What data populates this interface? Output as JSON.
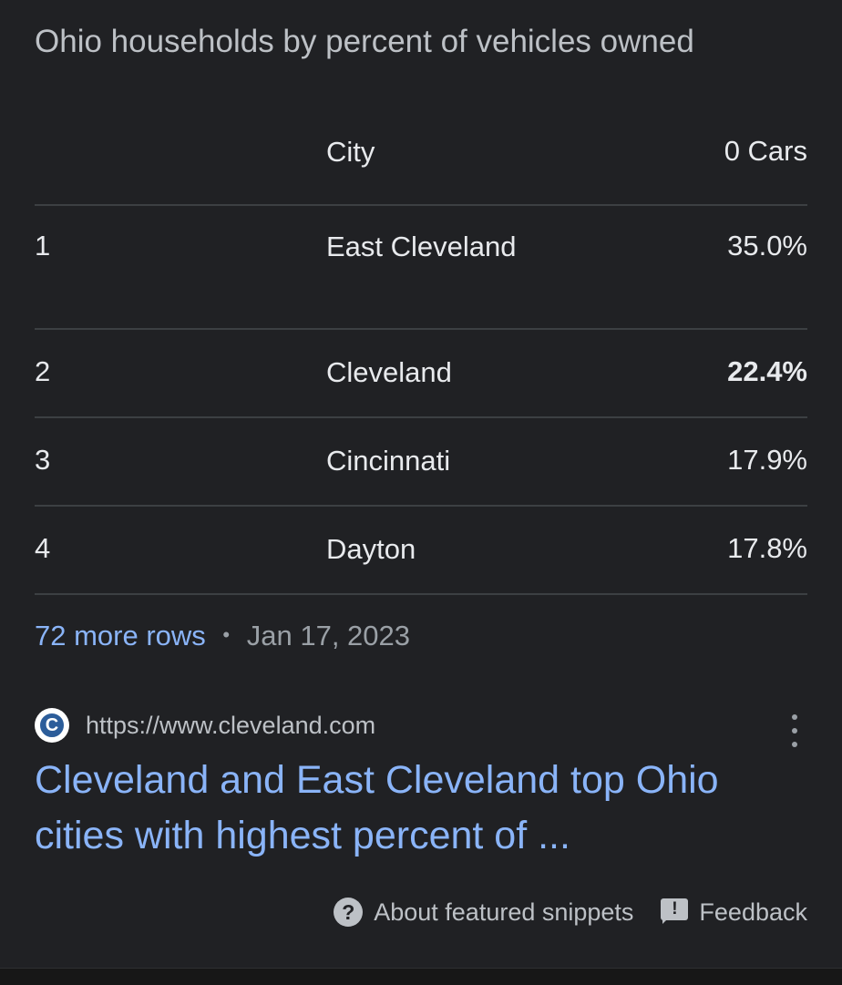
{
  "snippet": {
    "title": "Ohio households by percent of vehicles owned"
  },
  "table": {
    "headers": [
      "",
      "City",
      "0 Cars"
    ],
    "rows": [
      {
        "rank": "1",
        "city": "East Cleveland",
        "value": "35.0%",
        "bold": false
      },
      {
        "rank": "2",
        "city": "Cleveland",
        "value": "22.4%",
        "bold": true
      },
      {
        "rank": "3",
        "city": "Cincinnati",
        "value": "17.9%",
        "bold": false
      },
      {
        "rank": "4",
        "city": "Dayton",
        "value": "17.8%",
        "bold": false
      }
    ]
  },
  "meta": {
    "more_rows": "72 more rows",
    "separator": "•",
    "date": "Jan 17, 2023"
  },
  "source": {
    "favicon_letter": "C",
    "favicon_icon": "cleveland-favicon-icon",
    "url": "https://www.cleveland.com",
    "menu_icon": "more-vert-icon"
  },
  "result": {
    "title": "Cleveland and East Cleveland top Ohio cities with highest percent of ..."
  },
  "footer": {
    "help_icon": "question-circle-icon",
    "help_glyph": "?",
    "about_label": "About featured snippets",
    "feedback_icon": "feedback-icon",
    "feedback_glyph": "!",
    "feedback_label": "Feedback"
  },
  "colors": {
    "background": "#202124",
    "link": "#8ab4f8",
    "text": "#e8eaed",
    "muted": "#9aa0a6",
    "divider": "#3c4043"
  }
}
